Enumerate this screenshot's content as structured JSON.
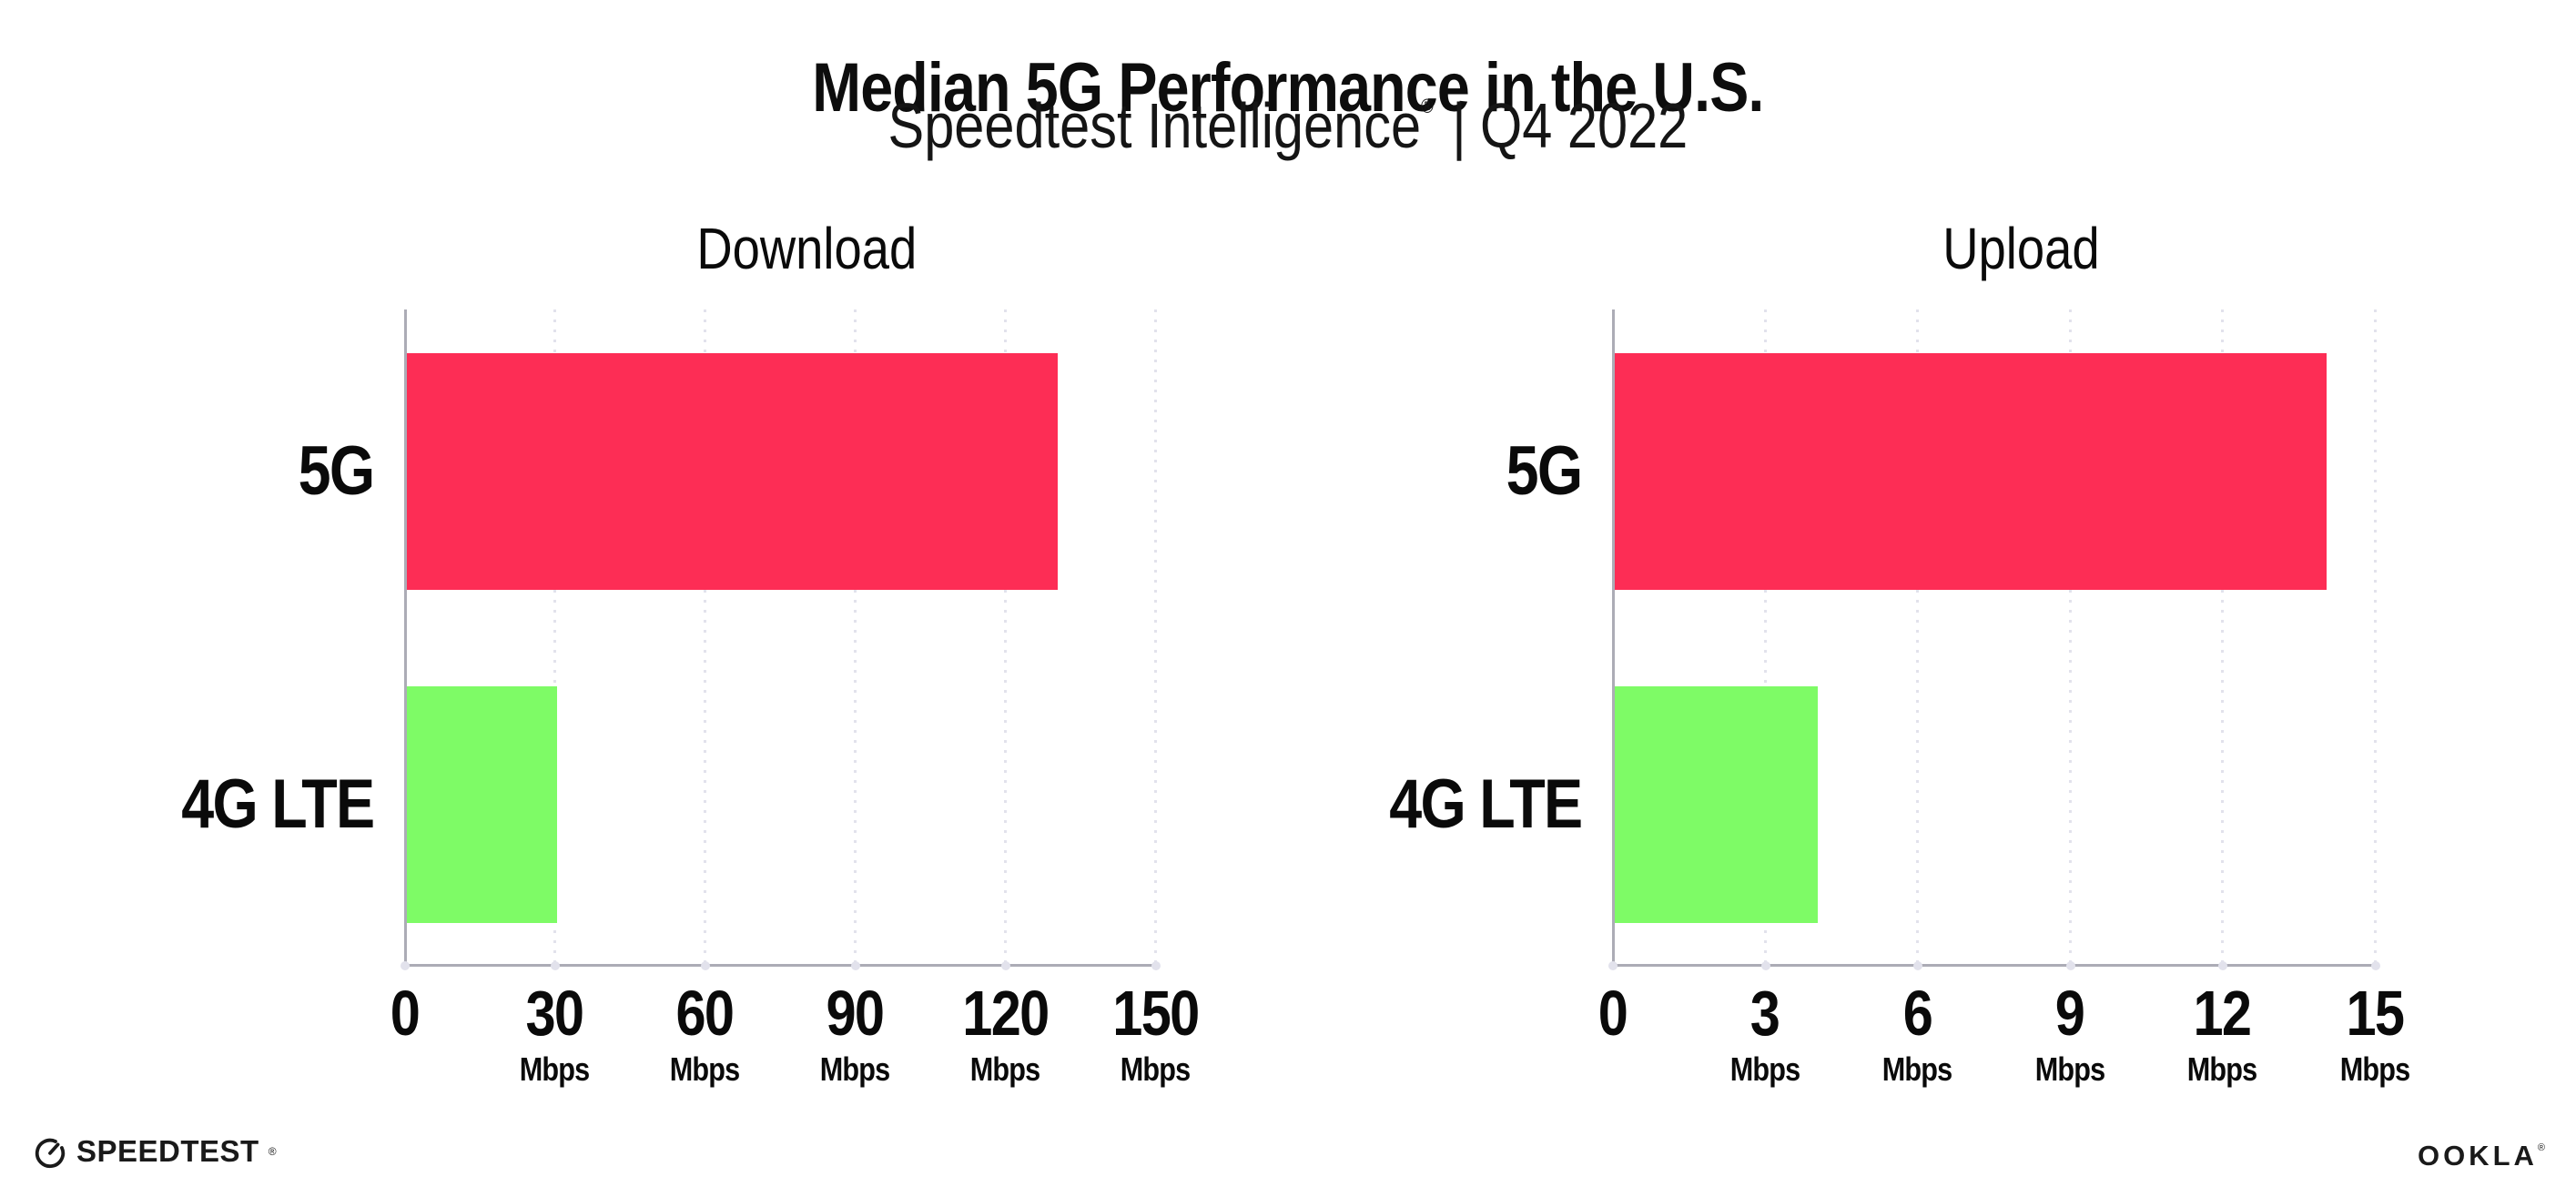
{
  "header": {
    "title": "Median 5G Performance in the U.S.",
    "subtitle_brand": "Speedtest Intelligence",
    "subtitle_reg": "®",
    "subtitle_separator": "|",
    "subtitle_period": "Q4 2022"
  },
  "chart_data": [
    {
      "type": "bar",
      "orientation": "horizontal",
      "title": "Download",
      "categories": [
        "5G",
        "4G LTE"
      ],
      "values": [
        130,
        30
      ],
      "unit": "Mbps",
      "xlabel": "",
      "ylabel": "",
      "xlim": [
        0,
        150
      ],
      "ticks": [
        0,
        30,
        60,
        90,
        120,
        150
      ],
      "grid": "vertical-dotted",
      "legend": "none",
      "bar_colors": [
        "#FD2D55",
        "#7EFB66"
      ]
    },
    {
      "type": "bar",
      "orientation": "horizontal",
      "title": "Upload",
      "categories": [
        "5G",
        "4G LTE"
      ],
      "values": [
        14,
        4
      ],
      "unit": "Mbps",
      "xlabel": "",
      "ylabel": "",
      "xlim": [
        0,
        15
      ],
      "ticks": [
        0,
        3,
        6,
        9,
        12,
        15
      ],
      "grid": "vertical-dotted",
      "legend": "none",
      "bar_colors": [
        "#FD2D55",
        "#7EFB66"
      ]
    }
  ],
  "footer": {
    "speedtest_label": "SPEEDTEST",
    "speedtest_mark": "®",
    "ookla_label": "OOKLA",
    "ookla_mark": "®"
  },
  "colors": {
    "bar_5g": "#FD2D55",
    "bar_4g_lte": "#7EFB66",
    "axis": "#ACACB6",
    "gridline": "#E2E2EC",
    "text": "#111111",
    "background": "#FFFFFF"
  }
}
